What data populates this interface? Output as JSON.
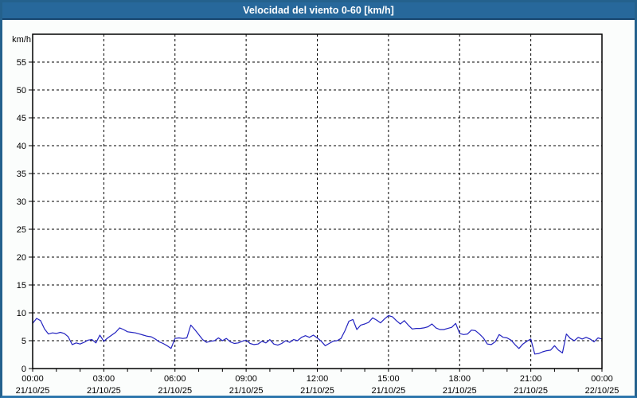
{
  "window": {
    "title": "Velocidad del viento 0-60 [km/h]"
  },
  "colors": {
    "titlebar_bg": "#27689b",
    "titlebar_edge": "#16456e",
    "title_text": "#ffffff",
    "window_border": "#24618d",
    "window_border_bottom": "#2e77ad",
    "page_bg": "#fbfdfc",
    "plot_bg": "#ffffff",
    "axis": "#000000",
    "grid": "#000000",
    "tick_text": "#000000",
    "line": "#2323c0"
  },
  "chart_data": {
    "type": "line",
    "title": "Velocidad del viento 0-60 [km/h]",
    "ylabel": "km/h",
    "xlabel": "",
    "ylim": [
      0,
      60
    ],
    "ytick_step": 5,
    "ytick_labels": [
      "0",
      "5",
      "10",
      "15",
      "20",
      "25",
      "30",
      "35",
      "40",
      "45",
      "50",
      "55"
    ],
    "grid": "dashed",
    "legend": "none",
    "x_hours_range": [
      0,
      24
    ],
    "x_minor_tick_every_hours": 1,
    "x_major_ticks": [
      {
        "hour": 0,
        "time": "00:00",
        "date": "21/10/25"
      },
      {
        "hour": 3,
        "time": "03:00",
        "date": "21/10/25"
      },
      {
        "hour": 6,
        "time": "06:00",
        "date": "21/10/25"
      },
      {
        "hour": 9,
        "time": "09:00",
        "date": "21/10/25"
      },
      {
        "hour": 12,
        "time": "12:00",
        "date": "21/10/25"
      },
      {
        "hour": 15,
        "time": "15:00",
        "date": "21/10/25"
      },
      {
        "hour": 18,
        "time": "18:00",
        "date": "21/10/25"
      },
      {
        "hour": 21,
        "time": "21:00",
        "date": "21/10/25"
      },
      {
        "hour": 24,
        "time": "00:00",
        "date": "22/10/25"
      }
    ],
    "series": [
      {
        "name": "Velocidad del viento",
        "unit": "km/h",
        "color": "#2323c0",
        "interval_minutes": 10,
        "start": "21/10/25 00:00",
        "end": "22/10/25 00:00",
        "values": [
          8.1,
          9.0,
          8.6,
          7.1,
          6.2,
          6.4,
          6.3,
          6.5,
          6.3,
          5.7,
          4.3,
          4.6,
          4.4,
          4.7,
          5.1,
          5.2,
          4.6,
          6.0,
          4.9,
          5.5,
          6.0,
          6.5,
          7.3,
          7.0,
          6.6,
          6.5,
          6.4,
          6.2,
          6.0,
          5.8,
          5.7,
          5.3,
          4.8,
          4.5,
          4.1,
          3.6,
          5.4,
          5.5,
          5.4,
          5.5,
          7.8,
          7.0,
          6.1,
          5.2,
          4.7,
          4.9,
          5.0,
          5.5,
          5.0,
          5.4,
          4.8,
          4.5,
          4.6,
          4.9,
          5.1,
          4.5,
          4.3,
          4.4,
          4.9,
          4.6,
          5.2,
          4.4,
          4.2,
          4.5,
          5.0,
          4.7,
          5.2,
          5.0,
          5.6,
          5.9,
          5.6,
          6.0,
          5.5,
          4.9,
          4.1,
          4.5,
          4.9,
          5.0,
          5.4,
          6.8,
          8.5,
          8.8,
          7.0,
          7.8,
          8.0,
          8.3,
          9.1,
          8.7,
          8.2,
          8.9,
          9.5,
          9.3,
          8.6,
          8.0,
          8.6,
          7.8,
          7.1,
          7.2,
          7.2,
          7.3,
          7.5,
          8.0,
          7.3,
          7.0,
          7.0,
          7.2,
          7.4,
          8.1,
          6.3,
          6.1,
          6.2,
          6.9,
          6.8,
          6.2,
          5.5,
          4.4,
          4.3,
          4.8,
          6.1,
          5.6,
          5.5,
          5.1,
          4.3,
          3.6,
          4.4,
          4.9,
          5.3,
          2.6,
          2.7,
          3.0,
          3.2,
          3.3,
          4.1,
          3.3,
          2.8,
          6.2,
          5.4,
          5.0,
          5.6,
          5.3,
          5.6,
          5.3,
          4.8,
          5.5,
          5.3
        ]
      }
    ]
  }
}
